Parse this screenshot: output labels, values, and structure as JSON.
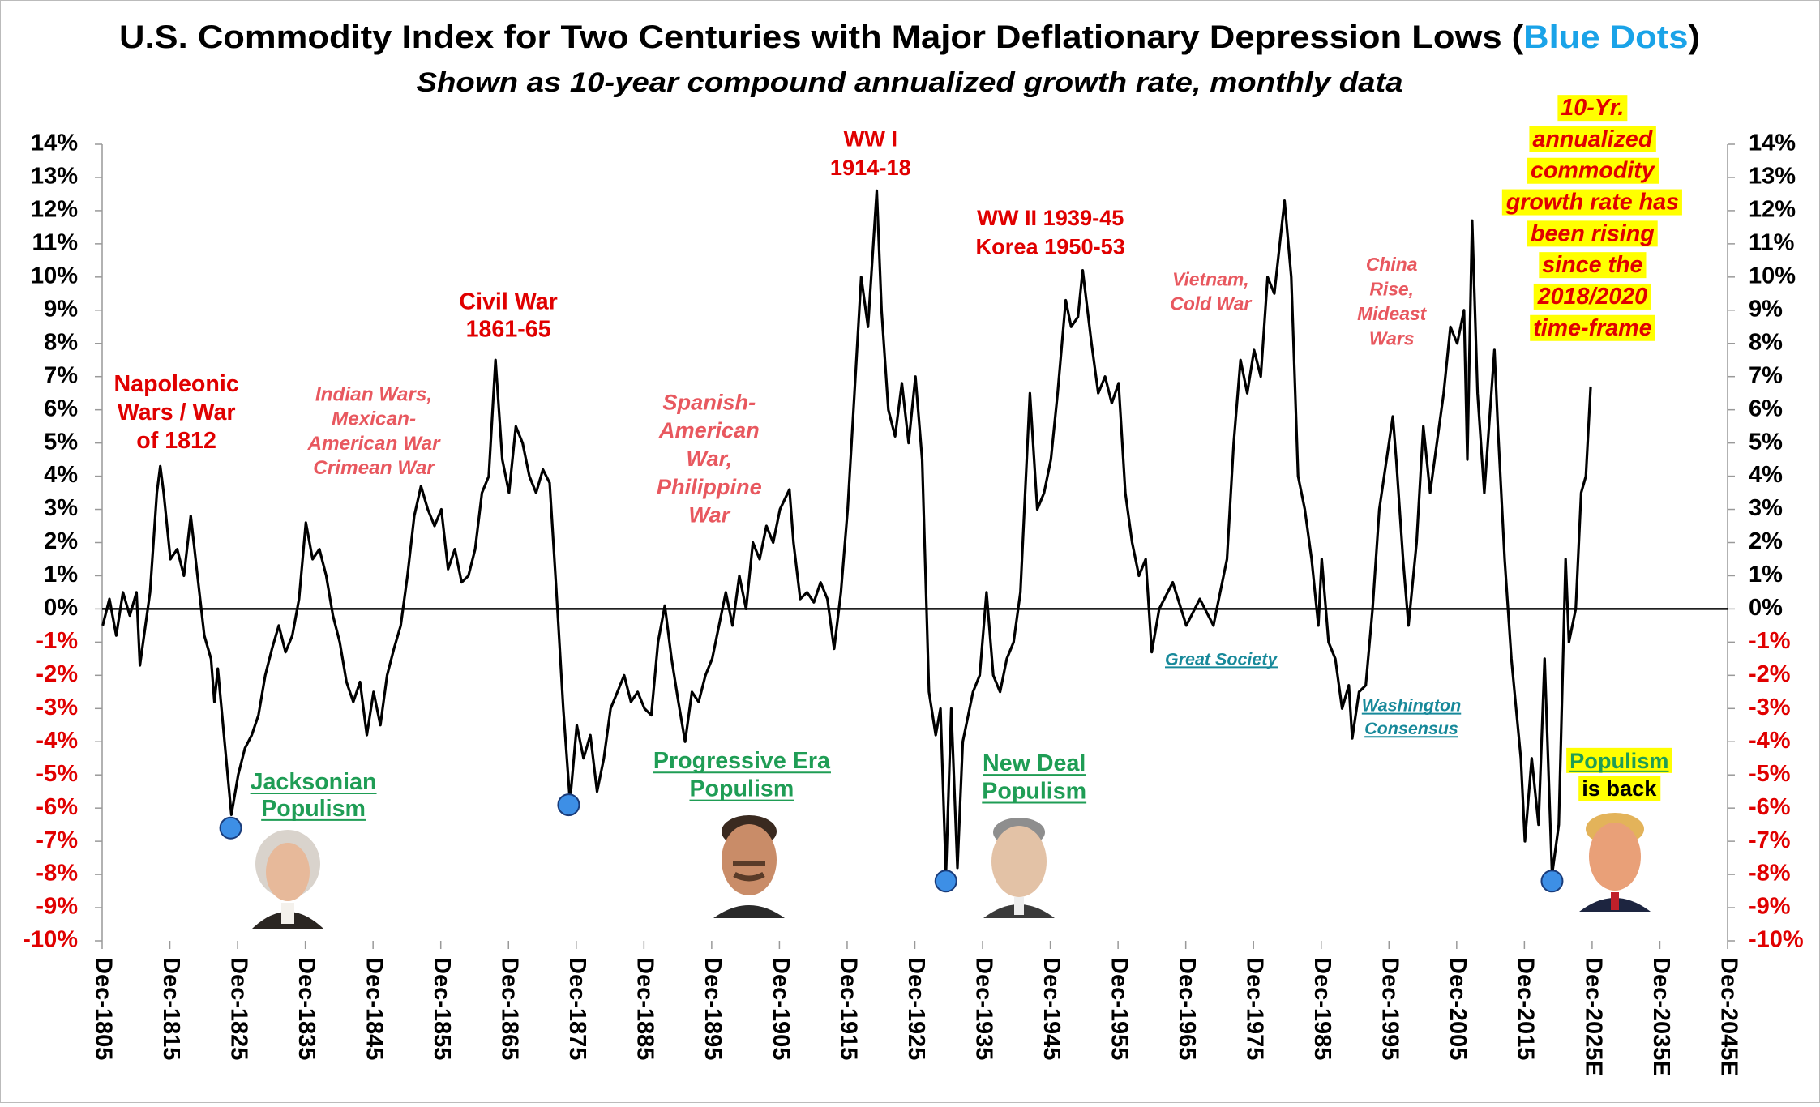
{
  "chart_data": {
    "type": "line",
    "title": {
      "text": "U.S. Commodity Index for Two Centuries with Major Deflationary Depression Lows (",
      "highlight": "Blue Dots",
      "end": ")",
      "highlight_color": "#1aa3e8"
    },
    "subtitle": "Shown as 10-year compound annualized growth rate, monthly data",
    "line_color": "#000000",
    "x": [
      1806,
      1807,
      1808,
      1809,
      1810,
      1811,
      1811.5,
      1813,
      1814,
      1814.5,
      1815,
      1816,
      1817,
      1818,
      1819,
      1820,
      1821,
      1822,
      1822.5,
      1823,
      1824,
      1825,
      1826,
      1827,
      1828,
      1829,
      1830,
      1831,
      1832,
      1833,
      1834,
      1835,
      1836,
      1837,
      1838,
      1839,
      1840,
      1841,
      1842,
      1843,
      1844,
      1845,
      1846,
      1847,
      1848,
      1849,
      1850,
      1851,
      1852,
      1853,
      1854,
      1855,
      1856,
      1857,
      1858,
      1859,
      1860,
      1861,
      1862,
      1863,
      1864,
      1865,
      1866,
      1867,
      1868,
      1869,
      1870,
      1871,
      1872,
      1873,
      1874,
      1875,
      1876,
      1877,
      1878,
      1879,
      1880,
      1881,
      1882,
      1883,
      1884,
      1885,
      1886,
      1887,
      1888,
      1889,
      1890,
      1891,
      1892,
      1893,
      1894,
      1895,
      1896,
      1897,
      1898,
      1899,
      1900,
      1901,
      1902,
      1903,
      1904,
      1905,
      1906,
      1907.4,
      1908,
      1909,
      1910,
      1911,
      1912,
      1913,
      1914,
      1915,
      1916,
      1917,
      1918,
      1919,
      1920.3,
      1921,
      1922,
      1923,
      1924,
      1925,
      1926,
      1927,
      1928,
      1929,
      1929.7,
      1930.5,
      1931.3,
      1932.2,
      1933,
      1934.5,
      1935.5,
      1936.5,
      1937.5,
      1938.5,
      1939.5,
      1940.5,
      1941.5,
      1942.9,
      1944,
      1945,
      1946,
      1947,
      1948.2,
      1949,
      1950,
      1950.7,
      1952,
      1953,
      1954,
      1955,
      1956,
      1957,
      1958,
      1959,
      1960,
      1960.9,
      1962,
      1964,
      1966,
      1968,
      1970,
      1971,
      1972,
      1973,
      1974,
      1975,
      1976,
      1977,
      1978,
      1979,
      1980.5,
      1981.5,
      1982.5,
      1983.5,
      1984.5,
      1985.5,
      1986,
      1987,
      1988,
      1989,
      1990,
      1990.5,
      1991.5,
      1992.5,
      1993.5,
      1994.5,
      1996.5,
      1997,
      1998,
      1998.8,
      2000,
      2001,
      2002,
      2003,
      2004,
      2005,
      2006,
      2007,
      2007.5,
      2008.2,
      2009,
      2010,
      2011.5,
      2012,
      2013,
      2014,
      2015.4,
      2016,
      2017,
      2018,
      2018.9,
      2020,
      2021,
      2022,
      2022.5,
      2023.5,
      2024.3,
      2025,
      2025.7
    ],
    "values": [
      -0.5,
      0.3,
      -0.8,
      0.5,
      -0.2,
      0.5,
      -1.7,
      0.5,
      3.5,
      4.3,
      3.5,
      1.5,
      1.8,
      1.0,
      2.8,
      1.0,
      -0.8,
      -1.5,
      -2.8,
      -1.8,
      -4.0,
      -6.2,
      -5.0,
      -4.2,
      -3.8,
      -3.2,
      -2.0,
      -1.2,
      -0.5,
      -1.3,
      -0.8,
      0.3,
      2.6,
      1.5,
      1.8,
      1.0,
      -0.2,
      -1.0,
      -2.2,
      -2.8,
      -2.2,
      -3.8,
      -2.5,
      -3.5,
      -2.0,
      -1.2,
      -0.5,
      1.0,
      2.8,
      3.7,
      3.0,
      2.5,
      3.0,
      1.2,
      1.8,
      0.8,
      1.0,
      1.8,
      3.5,
      4.0,
      7.5,
      4.5,
      3.5,
      5.5,
      5.0,
      4.0,
      3.5,
      4.2,
      3.8,
      0.5,
      -3.0,
      -5.8,
      -3.5,
      -4.5,
      -3.8,
      -5.5,
      -4.5,
      -3.0,
      -2.5,
      -2.0,
      -2.8,
      -2.5,
      -3.0,
      -3.2,
      -1.0,
      0.1,
      -1.5,
      -2.8,
      -4.0,
      -2.5,
      -2.8,
      -2.0,
      -1.5,
      -0.5,
      0.5,
      -0.5,
      1.0,
      0.0,
      2.0,
      1.5,
      2.5,
      2.0,
      3.0,
      3.6,
      2.0,
      0.3,
      0.5,
      0.2,
      0.8,
      0.3,
      -1.2,
      0.5,
      3.0,
      6.5,
      10.0,
      8.5,
      12.6,
      9.0,
      6.0,
      5.2,
      6.8,
      5.0,
      7.0,
      4.5,
      -2.5,
      -3.8,
      -3.0,
      -8.0,
      -3.0,
      -7.8,
      -4.0,
      -2.5,
      -2.0,
      0.5,
      -2.0,
      -2.5,
      -1.5,
      -1.0,
      0.5,
      6.5,
      3.0,
      3.5,
      4.5,
      6.5,
      9.3,
      8.5,
      8.8,
      10.2,
      8.0,
      6.5,
      7.0,
      6.2,
      6.8,
      3.5,
      2.0,
      1.0,
      1.5,
      -1.3,
      0.0,
      0.8,
      -0.5,
      0.3,
      -0.5,
      0.5,
      1.5,
      5.0,
      7.5,
      6.5,
      7.8,
      7.0,
      10.0,
      9.5,
      12.3,
      10.0,
      4.0,
      3.0,
      1.5,
      -0.5,
      1.5,
      -1.0,
      -1.5,
      -3.0,
      -2.3,
      -3.9,
      -2.5,
      -2.3,
      0.0,
      3.0,
      5.8,
      4.5,
      1.5,
      -0.5,
      2.0,
      5.5,
      3.5,
      5.0,
      6.5,
      8.5,
      8.0,
      9.0,
      4.5,
      11.7,
      6.5,
      3.5,
      7.8,
      5.5,
      1.5,
      -1.5,
      -4.5,
      -7.0,
      -4.5,
      -6.5,
      -1.5,
      -8.0,
      -6.5,
      1.5,
      -1.0,
      0.0,
      3.5,
      4.0,
      6.7
    ],
    "lows": {
      "color": "#3d8fe6",
      "x": [
        1824.9,
        1874.8,
        1930.5,
        2020.0
      ],
      "values": [
        -6.6,
        -5.9,
        -8.2,
        -8.2
      ]
    },
    "xlim": [
      1805.92,
      2045.92
    ],
    "xticks": [
      {
        "value": 1805.92,
        "label": "Dec-1805"
      },
      {
        "value": 1815.92,
        "label": "Dec-1815"
      },
      {
        "value": 1825.92,
        "label": "Dec-1825"
      },
      {
        "value": 1835.92,
        "label": "Dec-1835"
      },
      {
        "value": 1845.92,
        "label": "Dec-1845"
      },
      {
        "value": 1855.92,
        "label": "Dec-1855"
      },
      {
        "value": 1865.92,
        "label": "Dec-1865"
      },
      {
        "value": 1875.92,
        "label": "Dec-1875"
      },
      {
        "value": 1885.92,
        "label": "Dec-1885"
      },
      {
        "value": 1895.92,
        "label": "Dec-1895"
      },
      {
        "value": 1905.92,
        "label": "Dec-1905"
      },
      {
        "value": 1915.92,
        "label": "Dec-1915"
      },
      {
        "value": 1925.92,
        "label": "Dec-1925"
      },
      {
        "value": 1935.92,
        "label": "Dec-1935"
      },
      {
        "value": 1945.92,
        "label": "Dec-1945"
      },
      {
        "value": 1955.92,
        "label": "Dec-1955"
      },
      {
        "value": 1965.92,
        "label": "Dec-1965"
      },
      {
        "value": 1975.92,
        "label": "Dec-1975"
      },
      {
        "value": 1985.92,
        "label": "Dec-1985"
      },
      {
        "value": 1995.92,
        "label": "Dec-1995"
      },
      {
        "value": 2005.92,
        "label": "Dec-2005"
      },
      {
        "value": 2015.92,
        "label": "Dec-2015"
      },
      {
        "value": 2025.92,
        "label": "Dec-2025E"
      },
      {
        "value": 2035.92,
        "label": "Dec-2035E"
      },
      {
        "value": 2045.92,
        "label": "Dec-2045E"
      }
    ],
    "ylim": [
      -10,
      14
    ],
    "yticks": [
      {
        "value": 14,
        "label": "14%"
      },
      {
        "value": 13,
        "label": "13%"
      },
      {
        "value": 12,
        "label": "12%"
      },
      {
        "value": 11,
        "label": "11%"
      },
      {
        "value": 10,
        "label": "10%"
      },
      {
        "value": 9,
        "label": "9%"
      },
      {
        "value": 8,
        "label": "8%"
      },
      {
        "value": 7,
        "label": "7%"
      },
      {
        "value": 6,
        "label": "6%"
      },
      {
        "value": 5,
        "label": "5%"
      },
      {
        "value": 4,
        "label": "4%"
      },
      {
        "value": 3,
        "label": "3%"
      },
      {
        "value": 2,
        "label": "2%"
      },
      {
        "value": 1,
        "label": "1%"
      },
      {
        "value": 0,
        "label": "0%"
      },
      {
        "value": -1,
        "label": "-1%"
      },
      {
        "value": -2,
        "label": "-2%"
      },
      {
        "value": -3,
        "label": "-3%"
      },
      {
        "value": -4,
        "label": "-4%"
      },
      {
        "value": -5,
        "label": "-5%"
      },
      {
        "value": -6,
        "label": "-6%"
      },
      {
        "value": -7,
        "label": "-7%"
      },
      {
        "value": -8,
        "label": "-8%"
      },
      {
        "value": -9,
        "label": "-9%"
      },
      {
        "value": -10,
        "label": "-10%"
      }
    ],
    "tick_colors": {
      "positive": "#000000",
      "negative": "#e00000"
    },
    "grid": false,
    "zero_line": true,
    "highlight_color": "#ffff00",
    "annotations": [
      {
        "lines": [
          "Napoleonic",
          "Wars / War",
          "of 1812"
        ],
        "style": "war",
        "color": "#e00000"
      },
      {
        "lines": [
          "Indian Wars,",
          "Mexican-",
          "American War",
          "Crimean War"
        ],
        "style": "conflict",
        "color": "#e8585f"
      },
      {
        "lines": [
          "Civil War",
          "1861-65"
        ],
        "style": "war",
        "color": "#e00000"
      },
      {
        "lines": [
          "Spanish-",
          "American",
          "War,",
          "Philippine",
          "War"
        ],
        "style": "conflict",
        "color": "#e8585f"
      },
      {
        "lines": [
          "WW I",
          "1914-18"
        ],
        "style": "war",
        "color": "#e00000"
      },
      {
        "lines": [
          "WW II  1939-45",
          "Korea 1950-53"
        ],
        "style": "war",
        "color": "#e00000"
      },
      {
        "lines": [
          "Vietnam,",
          "Cold War"
        ],
        "style": "conflict",
        "color": "#e8585f"
      },
      {
        "lines": [
          "China",
          "Rise,",
          "Mideast",
          "Wars"
        ],
        "style": "conflict",
        "color": "#e8585f"
      },
      {
        "lines": [
          "10-Yr.",
          "annualized",
          "commodity",
          "growth rate has",
          "been rising",
          "since the",
          "2018/2020",
          "time-frame"
        ],
        "style": "callout",
        "color": "#e00000"
      },
      {
        "lines": [
          "Jacksonian",
          "Populism"
        ],
        "style": "populism",
        "color": "#1f9d55"
      },
      {
        "lines": [
          "Progressive Era",
          "Populism"
        ],
        "style": "populism",
        "color": "#1f9d55"
      },
      {
        "lines": [
          "New Deal",
          "Populism"
        ],
        "style": "populism",
        "color": "#1f9d55"
      },
      {
        "lines": [
          "Great Society"
        ],
        "style": "policy",
        "color": "#17899a"
      },
      {
        "lines": [
          "Washington",
          "Consensus"
        ],
        "style": "policy",
        "color": "#17899a"
      },
      {
        "lines": [
          "Populism",
          "is back"
        ],
        "style": "populism-callout",
        "color": [
          "#1f9d55",
          "#000000"
        ]
      }
    ]
  }
}
